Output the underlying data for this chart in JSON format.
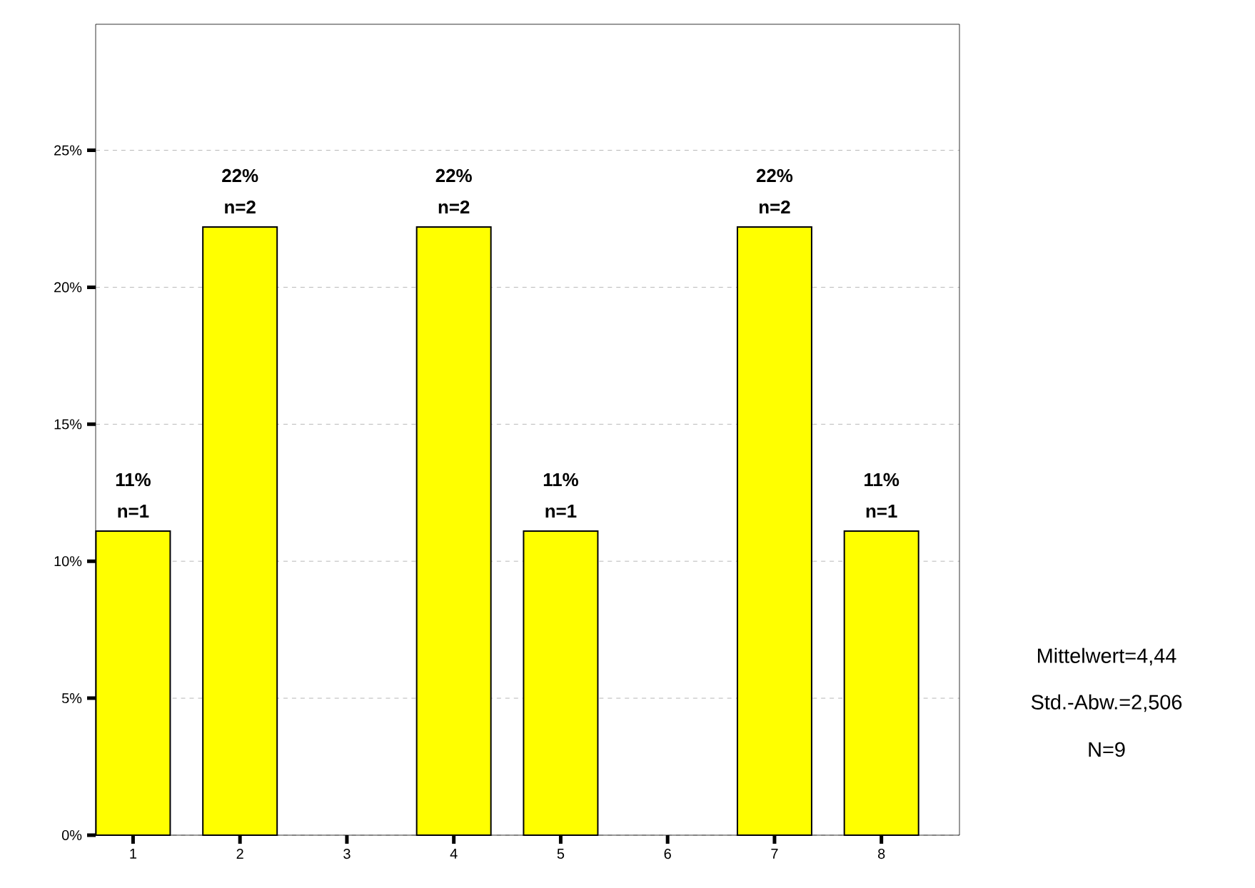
{
  "chart_data": {
    "type": "bar",
    "categories": [
      "1",
      "2",
      "3",
      "4",
      "5",
      "6",
      "7",
      "8"
    ],
    "values": [
      11.1,
      22.2,
      0,
      22.2,
      11.1,
      0,
      22.2,
      11.1
    ],
    "color": "#ffff00",
    "value_labels": [
      "11%",
      "22%",
      null,
      "22%",
      "11%",
      null,
      "22%",
      "11%"
    ],
    "ylim": [
      0,
      29.6
    ],
    "yticks": [
      {
        "value": 0,
        "label": "0%"
      },
      {
        "value": 5,
        "label": "5%"
      },
      {
        "value": 10,
        "label": "10%"
      },
      {
        "value": 15,
        "label": "15%"
      },
      {
        "value": 20,
        "label": "20%"
      },
      {
        "value": 25,
        "label": "25%"
      }
    ],
    "grid": "y",
    "annotations": [
      {
        "text": "n=1",
        "x": "1",
        "y": 11.1
      },
      {
        "text": "n=2",
        "x": "2",
        "y": 22.2
      },
      {
        "text": "n=2",
        "x": "4",
        "y": 22.2
      },
      {
        "text": "n=1",
        "x": "5",
        "y": 11.1
      },
      {
        "text": "n=2",
        "x": "7",
        "y": 22.2
      },
      {
        "text": "n=1",
        "x": "8",
        "y": 11.1
      },
      "Mittelwert=4,44",
      "Std.-Abw.=2,506",
      "N=9"
    ]
  }
}
